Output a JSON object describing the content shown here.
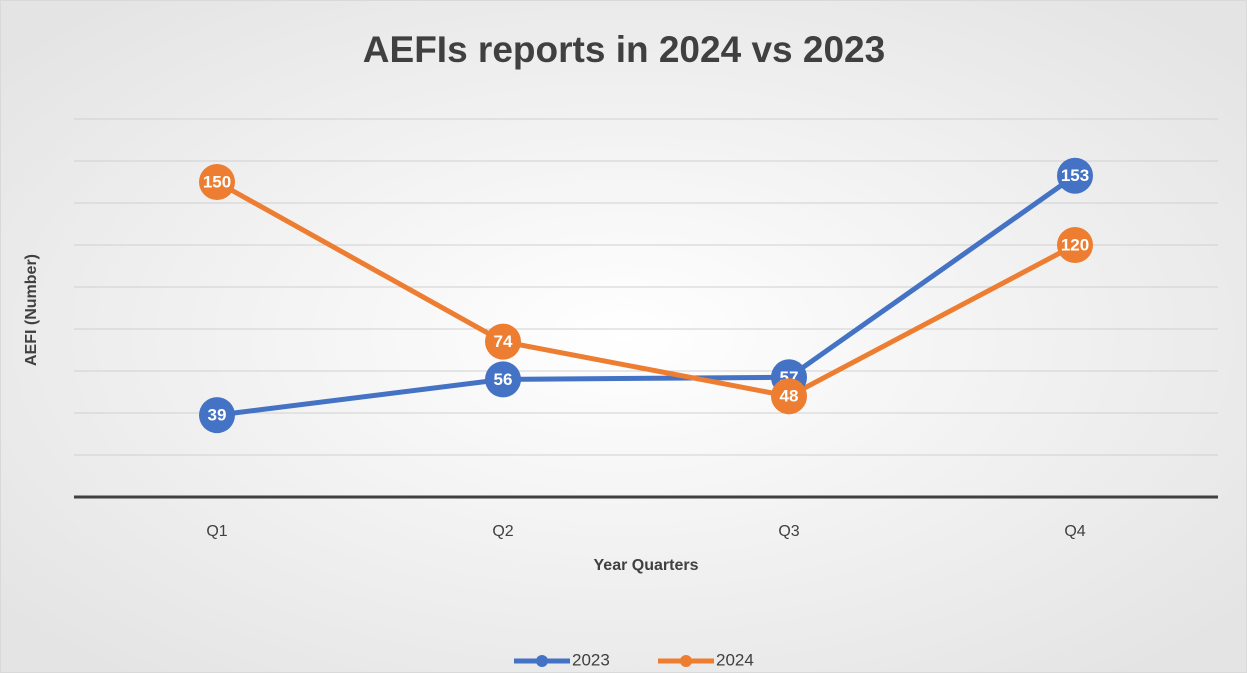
{
  "chart_data": {
    "type": "line",
    "title": "AEFIs reports in 2024 vs 2023",
    "x_label": "Year Quarters",
    "y_label": "AEFI (Number)",
    "categories": [
      "Q1",
      "Q2",
      "Q3",
      "Q4"
    ],
    "series": [
      {
        "name": "2023",
        "color": "#4472c4",
        "values": [
          39,
          56,
          57,
          153
        ]
      },
      {
        "name": "2024",
        "color": "#ed7d31",
        "values": [
          150,
          74,
          48,
          120
        ]
      }
    ],
    "ylim": [
      0,
      180
    ],
    "yticks": [
      20,
      40,
      60,
      80,
      100,
      120,
      140,
      160,
      180
    ],
    "grid": true,
    "legend": "bottom"
  }
}
